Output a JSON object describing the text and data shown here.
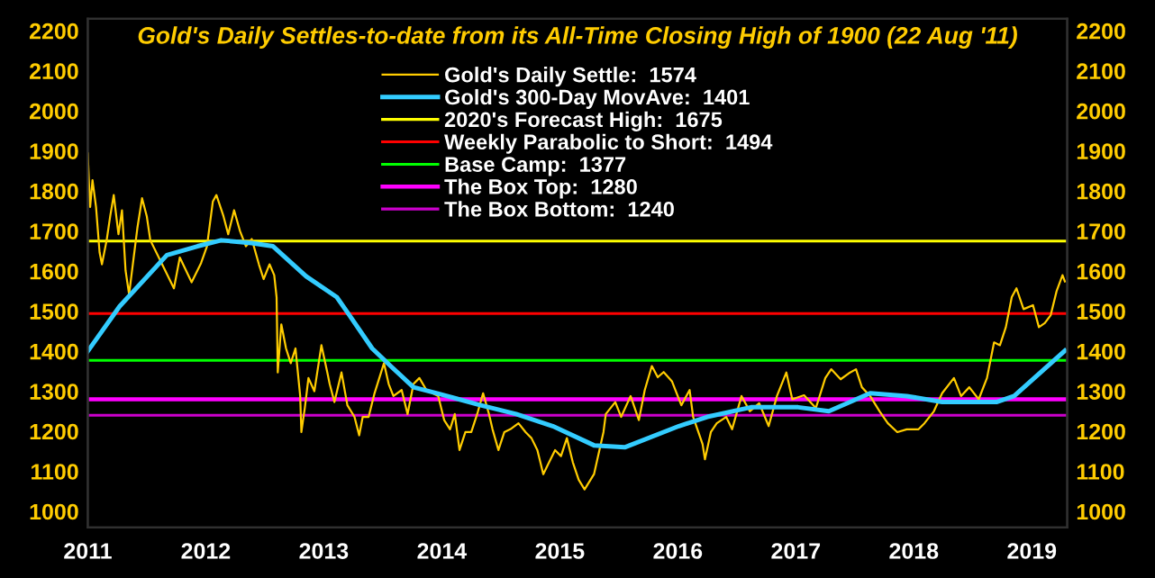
{
  "chart_data": {
    "type": "line",
    "title": "Gold's Daily Settles-to-date from its All-Time Closing High of 1900 (22 Aug '11)",
    "xlim": [
      2011,
      2019.3
    ],
    "xticks": [
      2011,
      2012,
      2013,
      2014,
      2015,
      2016,
      2017,
      2018,
      2019
    ],
    "ylim": [
      960,
      2230
    ],
    "yticks": [
      1000,
      1100,
      1200,
      1300,
      1400,
      1500,
      1600,
      1700,
      1800,
      1900,
      2000,
      2100,
      2200
    ],
    "y2lim": [
      960,
      2230
    ],
    "y2ticks": [
      1000,
      1100,
      1200,
      1300,
      1400,
      1500,
      1600,
      1700,
      1800,
      1900,
      2000,
      2100,
      2200
    ],
    "grid": false,
    "legend": "top",
    "marker": "none",
    "line_style": "solid",
    "series": [
      {
        "name": "Gold's Daily Settle:  1574",
        "color": "#ffcc00",
        "x": [
          2011.0,
          2011.01,
          2011.02,
          2011.04,
          2011.07,
          2011.1,
          2011.12,
          2011.16,
          2011.19,
          2011.22,
          2011.26,
          2011.29,
          2011.32,
          2011.35,
          2011.42,
          2011.46,
          2011.5,
          2011.53,
          2011.63,
          2011.73,
          2011.78,
          2011.88,
          2011.96,
          2012.01,
          2012.06,
          2012.09,
          2012.15,
          2012.19,
          2012.24,
          2012.29,
          2012.34,
          2012.39,
          2012.45,
          2012.49,
          2012.54,
          2012.58,
          2012.6,
          2012.61,
          2012.64,
          2012.68,
          2012.72,
          2012.76,
          2012.8,
          2012.81,
          2012.84,
          2012.87,
          2012.92,
          2012.98,
          2013.03,
          2013.05,
          2013.09,
          2013.15,
          2013.2,
          2013.26,
          2013.3,
          2013.33,
          2013.38,
          2013.43,
          2013.51,
          2013.55,
          2013.59,
          2013.66,
          2013.71,
          2013.76,
          2013.81,
          2013.87,
          2013.97,
          2014.02,
          2014.07,
          2014.11,
          2014.15,
          2014.2,
          2014.25,
          2014.3,
          2014.35,
          2014.4,
          2014.43,
          2014.48,
          2014.53,
          2014.58,
          2014.65,
          2014.71,
          2014.76,
          2014.81,
          2014.86,
          2014.91,
          2014.96,
          2015.01,
          2015.06,
          2015.11,
          2015.16,
          2015.21,
          2015.29,
          2015.37,
          2015.39,
          2015.47,
          2015.52,
          2015.6,
          2015.67,
          2015.72,
          2015.78,
          2015.83,
          2015.88,
          2015.95,
          2016.03,
          2016.1,
          2016.13,
          2016.21,
          2016.23,
          2016.28,
          2016.33,
          2016.41,
          2016.46,
          2016.54,
          2016.61,
          2016.69,
          2016.77,
          2016.84,
          2016.92,
          2016.97,
          2017.07,
          2017.17,
          2017.25,
          2017.3,
          2017.38,
          2017.45,
          2017.51,
          2017.56,
          2017.63,
          2017.71,
          2017.78,
          2017.86,
          2017.94,
          2018.04,
          2018.09,
          2018.17,
          2018.24,
          2018.34,
          2018.4,
          2018.47,
          2018.55,
          2018.62,
          2018.68,
          2018.73,
          2018.78,
          2018.83,
          2018.87,
          2018.93,
          2019.01,
          2019.06,
          2019.11,
          2019.16,
          2019.21,
          2019.26,
          2019.28
        ],
        "values": [
          1894,
          1820,
          1760,
          1827,
          1760,
          1647,
          1617,
          1677,
          1737,
          1790,
          1692,
          1752,
          1602,
          1542,
          1707,
          1782,
          1737,
          1677,
          1617,
          1557,
          1634,
          1572,
          1620,
          1662,
          1774,
          1790,
          1737,
          1692,
          1752,
          1700,
          1662,
          1680,
          1617,
          1580,
          1617,
          1590,
          1535,
          1347,
          1467,
          1407,
          1370,
          1407,
          1288,
          1198,
          1260,
          1333,
          1300,
          1415,
          1347,
          1318,
          1273,
          1347,
          1265,
          1236,
          1190,
          1236,
          1236,
          1295,
          1370,
          1318,
          1288,
          1303,
          1243,
          1318,
          1333,
          1303,
          1288,
          1228,
          1205,
          1243,
          1153,
          1198,
          1198,
          1243,
          1295,
          1243,
          1205,
          1153,
          1198,
          1205,
          1220,
          1198,
          1183,
          1153,
          1093,
          1123,
          1153,
          1138,
          1183,
          1123,
          1079,
          1055,
          1093,
          1198,
          1243,
          1273,
          1236,
          1288,
          1228,
          1303,
          1363,
          1335,
          1348,
          1325,
          1265,
          1303,
          1236,
          1168,
          1130,
          1198,
          1220,
          1236,
          1205,
          1288,
          1250,
          1270,
          1213,
          1288,
          1347,
          1280,
          1290,
          1258,
          1333,
          1355,
          1330,
          1345,
          1355,
          1310,
          1288,
          1250,
          1220,
          1198,
          1205,
          1205,
          1220,
          1250,
          1295,
          1333,
          1288,
          1310,
          1280,
          1333,
          1422,
          1415,
          1460,
          1535,
          1557,
          1505,
          1515,
          1460,
          1470,
          1490,
          1550,
          1590,
          1574
        ]
      },
      {
        "name": "Gold's 300-Day MovAve:  1401",
        "color": "#33ccff",
        "x": [
          2011.0,
          2011.27,
          2011.67,
          2011.93,
          2012.13,
          2012.39,
          2012.57,
          2012.85,
          2013.11,
          2013.2,
          2013.41,
          2013.57,
          2013.76,
          2013.96,
          2014.33,
          2014.63,
          2014.94,
          2015.29,
          2015.55,
          2016.01,
          2016.25,
          2016.62,
          2017.02,
          2017.28,
          2017.63,
          2017.94,
          2018.24,
          2018.7,
          2018.85,
          2019.28
        ],
        "values": [
          1400,
          1512,
          1640,
          1662,
          1677,
          1670,
          1662,
          1587,
          1535,
          1497,
          1407,
          1362,
          1310,
          1295,
          1265,
          1243,
          1213,
          1165,
          1160,
          1213,
          1236,
          1260,
          1260,
          1250,
          1295,
          1288,
          1273,
          1273,
          1288,
          1401
        ]
      }
    ],
    "ref_lines": [
      {
        "axis": "y",
        "value": 1675,
        "label": "2020's Forecast High:  1675",
        "color": "#ffff00"
      },
      {
        "axis": "y",
        "value": 1494,
        "label": "Weekly Parabolic to Short:  1494",
        "color": "#ff0000"
      },
      {
        "axis": "y",
        "value": 1377,
        "label": "Base Camp:  1377",
        "color": "#00ff00"
      },
      {
        "axis": "y",
        "value": 1280,
        "label": "The Box Top:  1280",
        "color": "#ff00ff"
      },
      {
        "axis": "y",
        "value": 1240,
        "label": "The Box Bottom:  1240",
        "color": "#cc00cc"
      }
    ]
  }
}
